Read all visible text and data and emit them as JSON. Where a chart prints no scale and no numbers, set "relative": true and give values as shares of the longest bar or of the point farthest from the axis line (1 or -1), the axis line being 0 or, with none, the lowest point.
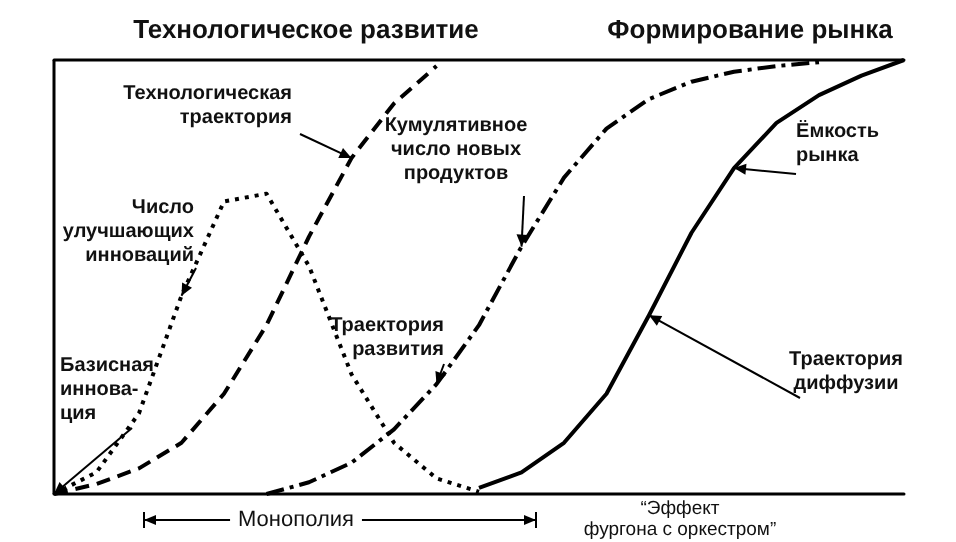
{
  "chart_data": {
    "type": "line",
    "relative": true,
    "title": "Технологическое развитие",
    "subtitle": "Формирование рынка",
    "categories": [
      null,
      null,
      null,
      null,
      null,
      null,
      null,
      null,
      null,
      null,
      null,
      null,
      null,
      null,
      null,
      null,
      null,
      null,
      null,
      null,
      null
    ],
    "marker": "none",
    "series": [
      {
        "color": "#000000",
        "line_style": "dashed",
        "values": [
          0,
          0.023,
          0.059,
          0.118,
          0.231,
          0.389,
          0.593,
          0.774,
          0.9,
          0.986,
          null,
          null,
          null,
          null,
          null,
          null,
          null,
          null,
          null,
          null,
          null
        ]
      },
      {
        "color": "#000000",
        "line_style": "dotted",
        "values": [
          0,
          0.05,
          0.186,
          0.457,
          0.674,
          0.692,
          0.525,
          0.276,
          0.118,
          0.036,
          0.005,
          null,
          null,
          null,
          null,
          null,
          null,
          null,
          null,
          null,
          null
        ]
      },
      {
        "color": "#000000",
        "line_style": "dashdot",
        "values": [
          null,
          null,
          null,
          null,
          null,
          0,
          0.027,
          0.072,
          0.149,
          0.253,
          0.389,
          0.57,
          0.729,
          0.842,
          0.91,
          0.95,
          0.973,
          0.986,
          0.995,
          null,
          null
        ]
      },
      {
        "color": "#000000",
        "line_style": "solid",
        "values": [
          null,
          null,
          null,
          null,
          null,
          null,
          null,
          null,
          null,
          null,
          0.014,
          0.05,
          0.118,
          0.231,
          0.412,
          0.602,
          0.751,
          0.855,
          0.919,
          0.964,
          1
        ]
      }
    ],
    "annotations": [
      "Технологическая\nтраектория",
      "Число\nулучшающих\nинноваций",
      "Базисная\nиннова-\nция",
      "Кумулятивное\nчисло новых\nпродуктов",
      "Траектория\nразвития",
      "Ёмкость\nрынка",
      "Траектория\nдиффузии",
      "Монополия",
      "“Эффект\nфургона с оркестром”"
    ]
  }
}
